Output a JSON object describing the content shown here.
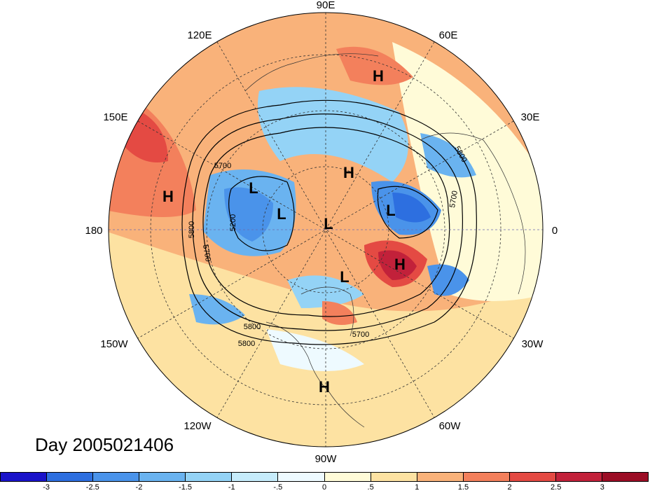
{
  "title": "Day 2005021406",
  "longitude_labels": {
    "top": "90E",
    "upper_left": "120E",
    "upper_right": "60E",
    "left_upper": "150E",
    "right_upper": "30E",
    "left": "180",
    "right": "0",
    "left_lower": "150W",
    "right_lower": "30W",
    "lower_left": "120W",
    "lower_right": "60W",
    "bottom": "90W"
  },
  "pressure_centers": [
    {
      "type": "H",
      "region": "northern Siberia"
    },
    {
      "type": "H",
      "region": "North Pacific"
    },
    {
      "type": "H",
      "region": "Arctic Ocean"
    },
    {
      "type": "L",
      "region": "Beaufort Sea"
    },
    {
      "type": "L",
      "region": "Alaska"
    },
    {
      "type": "L",
      "region": "North Pole"
    },
    {
      "type": "L",
      "region": "Barents Sea"
    },
    {
      "type": "H",
      "region": "North Atlantic"
    },
    {
      "type": "L",
      "region": "Hudson Bay"
    },
    {
      "type": "H",
      "region": "Mexico"
    }
  ],
  "contour_labels": [
    "5700",
    "5800",
    "5200",
    "5800",
    "5700",
    "5800",
    "5700",
    "5700",
    "5800"
  ],
  "colorbar": {
    "tick_labels": [
      "-3",
      "-2.5",
      "-2",
      "-1.5",
      "-1",
      "-.5",
      "0",
      ".5",
      "1",
      "1.5",
      "2",
      "2.5",
      "3"
    ],
    "colors": [
      "#1a13c9",
      "#2d6fe0",
      "#4a93ea",
      "#6ab3f0",
      "#94d3f6",
      "#c6ecfb",
      "#eefaff",
      "#fffbd8",
      "#fde2a2",
      "#f9b27a",
      "#f3805c",
      "#e44a43",
      "#c2213a",
      "#9b0d25"
    ]
  }
}
